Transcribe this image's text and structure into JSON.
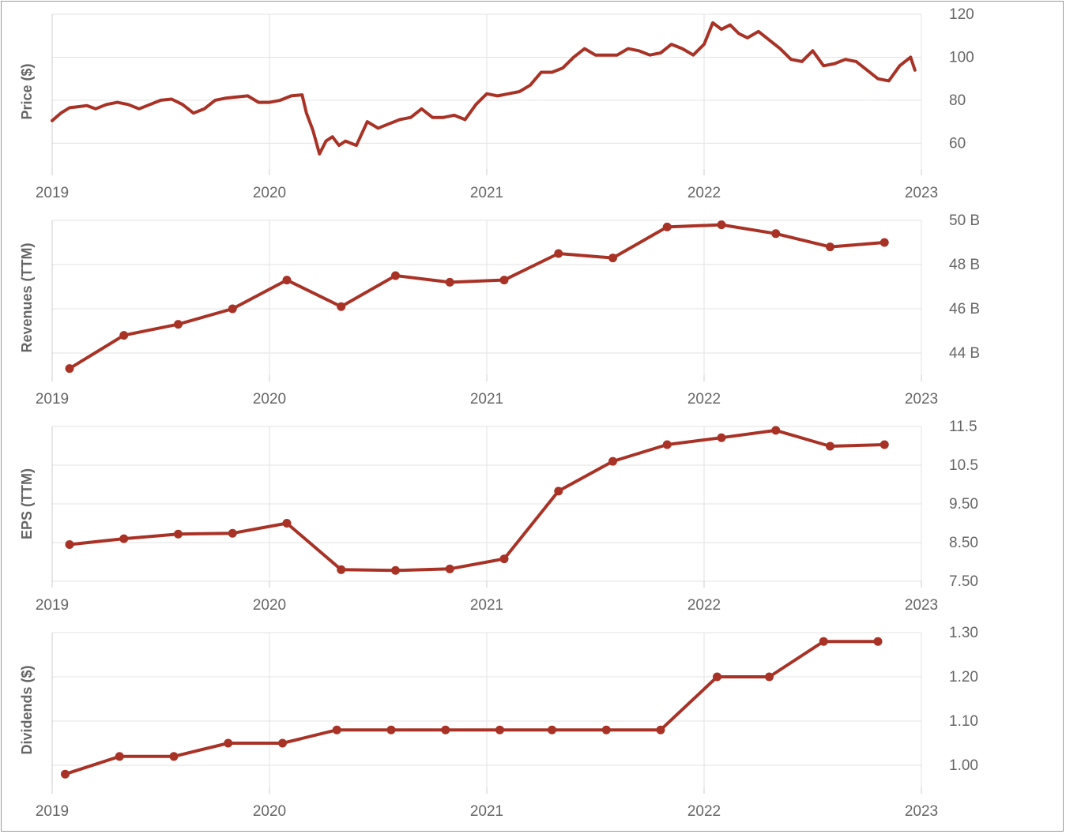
{
  "series_color": "#a93226",
  "chart_data": [
    {
      "type": "line",
      "ylabel": "Price ($)",
      "xlim": [
        2019,
        2023
      ],
      "ylim": [
        48,
        120
      ],
      "x_ticks": [
        "2019",
        "2020",
        "2021",
        "2022",
        "2023"
      ],
      "y_ticks": [
        {
          "value": 60,
          "label": "60"
        },
        {
          "value": 80,
          "label": "80"
        },
        {
          "value": 100,
          "label": "100"
        },
        {
          "value": 120,
          "label": "120"
        }
      ],
      "markers": false,
      "x": [
        2019.0,
        2019.04,
        2019.08,
        2019.12,
        2019.16,
        2019.2,
        2019.25,
        2019.3,
        2019.35,
        2019.4,
        2019.45,
        2019.5,
        2019.55,
        2019.6,
        2019.65,
        2019.7,
        2019.75,
        2019.8,
        2019.85,
        2019.9,
        2019.95,
        2020.0,
        2020.05,
        2020.1,
        2020.15,
        2020.17,
        2020.2,
        2020.23,
        2020.26,
        2020.29,
        2020.32,
        2020.35,
        2020.4,
        2020.45,
        2020.5,
        2020.55,
        2020.6,
        2020.65,
        2020.7,
        2020.75,
        2020.8,
        2020.85,
        2020.9,
        2020.95,
        2021.0,
        2021.05,
        2021.1,
        2021.15,
        2021.2,
        2021.25,
        2021.3,
        2021.35,
        2021.4,
        2021.45,
        2021.5,
        2021.55,
        2021.6,
        2021.65,
        2021.7,
        2021.75,
        2021.8,
        2021.85,
        2021.9,
        2021.95,
        2022.0,
        2022.04,
        2022.08,
        2022.12,
        2022.16,
        2022.2,
        2022.25,
        2022.3,
        2022.35,
        2022.4,
        2022.45,
        2022.5,
        2022.55,
        2022.6,
        2022.65,
        2022.7,
        2022.75,
        2022.8,
        2022.85,
        2022.9,
        2022.95,
        2022.97
      ],
      "values": [
        70.5,
        74,
        76.5,
        77,
        77.5,
        76,
        78,
        79,
        78,
        76,
        78,
        80,
        80.5,
        78,
        74,
        76,
        80,
        81,
        81.5,
        82,
        79,
        79,
        80,
        82,
        82.5,
        74,
        66,
        55,
        61,
        63,
        59,
        61,
        59,
        70,
        67,
        69,
        71,
        72,
        76,
        72,
        72,
        73,
        71,
        78,
        83,
        82,
        83,
        84,
        87,
        93,
        93,
        95,
        100,
        104,
        101,
        101,
        101,
        104,
        103,
        101,
        102,
        106,
        104,
        101,
        106,
        116,
        113,
        115,
        111,
        109,
        112,
        108,
        104,
        99,
        98,
        103,
        96,
        97,
        99,
        98,
        94,
        90,
        89,
        96,
        100,
        94
      ]
    },
    {
      "type": "line",
      "ylabel": "Revenues (TTM)",
      "xlim": [
        2019,
        2023
      ],
      "ylim": [
        43.0,
        50.0
      ],
      "x_ticks": [
        "2019",
        "2020",
        "2021",
        "2022",
        "2023"
      ],
      "y_ticks": [
        {
          "value": 44,
          "label": "44 B"
        },
        {
          "value": 46,
          "label": "46 B"
        },
        {
          "value": 48,
          "label": "48 B"
        },
        {
          "value": 50,
          "label": "50 B"
        }
      ],
      "markers": true,
      "x": [
        2019.08,
        2019.33,
        2019.58,
        2019.83,
        2020.08,
        2020.33,
        2020.58,
        2020.83,
        2021.08,
        2021.33,
        2021.58,
        2021.83,
        2022.08,
        2022.33,
        2022.58,
        2022.83
      ],
      "values": [
        43.3,
        44.8,
        45.3,
        46.0,
        47.3,
        46.1,
        47.5,
        47.2,
        47.3,
        48.5,
        48.3,
        49.7,
        49.8,
        49.4,
        48.8,
        49.0
      ]
    },
    {
      "type": "line",
      "ylabel": "EPS (TTM)",
      "xlim": [
        2019,
        2023
      ],
      "ylim": [
        7.5,
        11.5
      ],
      "x_ticks": [
        "2019",
        "2020",
        "2021",
        "2022",
        "2023"
      ],
      "y_ticks": [
        {
          "value": 7.5,
          "label": "7.50"
        },
        {
          "value": 8.5,
          "label": "8.50"
        },
        {
          "value": 9.5,
          "label": "9.50"
        },
        {
          "value": 10.5,
          "label": "10.5"
        },
        {
          "value": 11.5,
          "label": "11.5"
        }
      ],
      "markers": true,
      "x": [
        2019.08,
        2019.33,
        2019.58,
        2019.83,
        2020.08,
        2020.33,
        2020.58,
        2020.83,
        2021.08,
        2021.33,
        2021.58,
        2021.83,
        2022.08,
        2022.33,
        2022.58,
        2022.83
      ],
      "values": [
        8.45,
        8.6,
        8.72,
        8.74,
        9.0,
        7.8,
        7.78,
        7.82,
        8.08,
        9.83,
        10.6,
        11.03,
        11.21,
        11.4,
        10.99,
        11.03
      ]
    },
    {
      "type": "line",
      "ylabel": "Dividends ($)",
      "xlim": [
        2019,
        2023
      ],
      "ylim": [
        0.95,
        1.3
      ],
      "x_ticks": [
        "2019",
        "2020",
        "2021",
        "2022",
        "2023"
      ],
      "y_ticks": [
        {
          "value": 1.0,
          "label": "1.00"
        },
        {
          "value": 1.1,
          "label": "1.10"
        },
        {
          "value": 1.2,
          "label": "1.20"
        },
        {
          "value": 1.3,
          "label": "1.30"
        }
      ],
      "markers": true,
      "x": [
        2019.06,
        2019.31,
        2019.56,
        2019.81,
        2020.06,
        2020.31,
        2020.56,
        2020.81,
        2021.06,
        2021.3,
        2021.55,
        2021.8,
        2022.06,
        2022.3,
        2022.55,
        2022.8
      ],
      "values": [
        0.98,
        1.02,
        1.02,
        1.05,
        1.05,
        1.08,
        1.08,
        1.08,
        1.08,
        1.08,
        1.08,
        1.08,
        1.2,
        1.2,
        1.28,
        1.28
      ]
    }
  ]
}
